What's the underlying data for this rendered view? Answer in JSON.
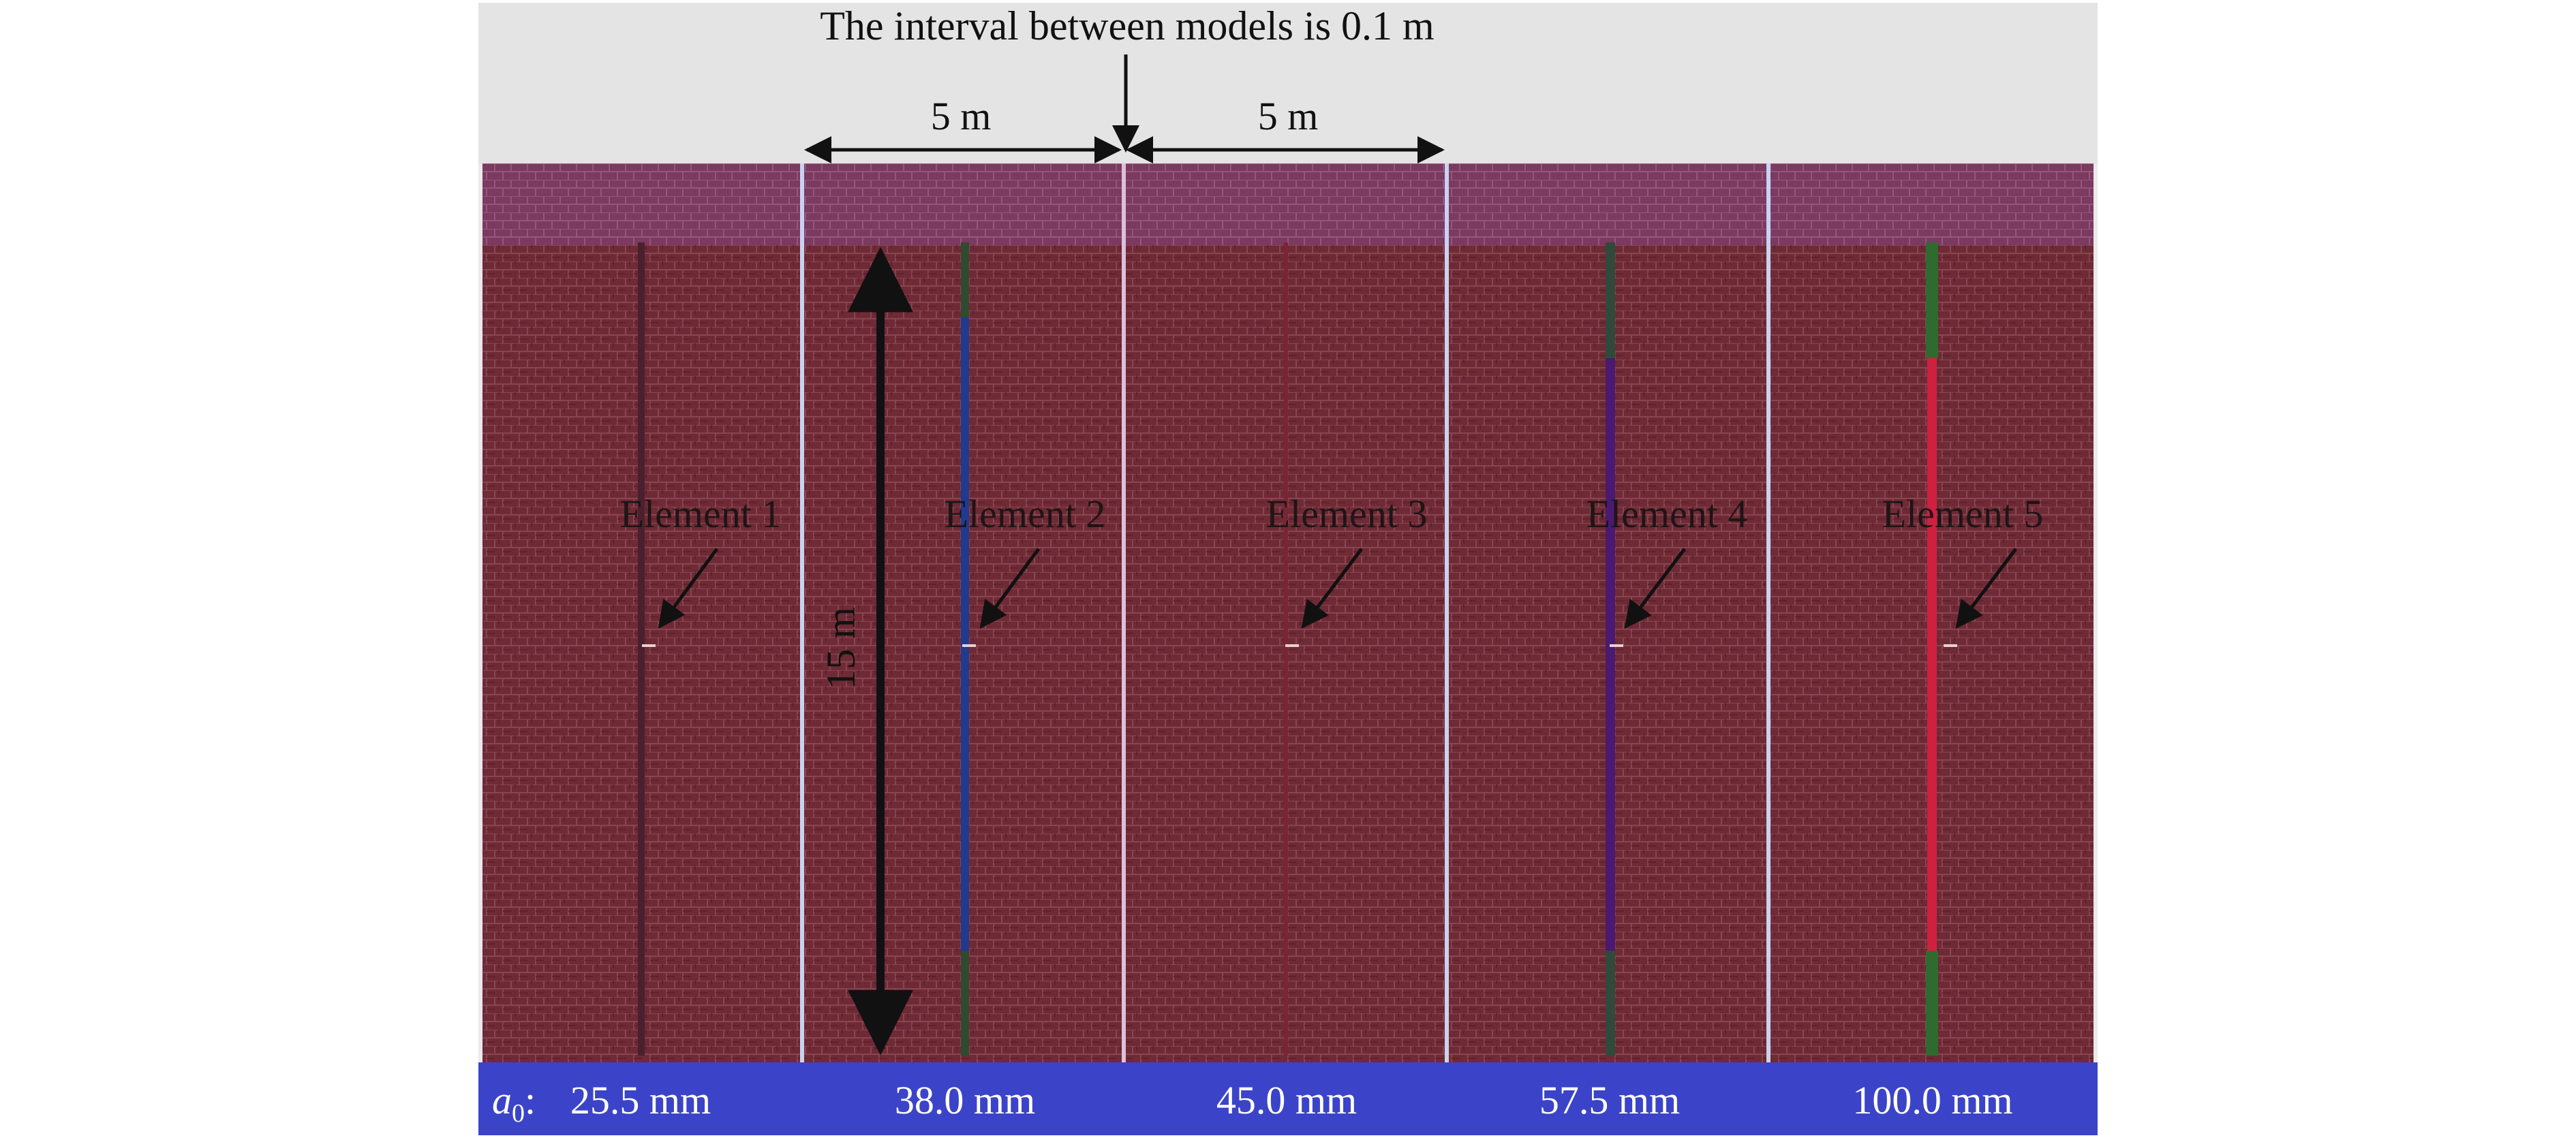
{
  "annotations": {
    "interval_note": "The interval between models is 0.1 m",
    "width_label_left": "5 m",
    "width_label_right": "5 m",
    "height_label": "15 m"
  },
  "elements": [
    {
      "label": "Element 1",
      "a0": "25.5 mm"
    },
    {
      "label": "Element 2",
      "a0": "38.0 mm"
    },
    {
      "label": "Element 3",
      "a0": "45.0 mm"
    },
    {
      "label": "Element 4",
      "a0": "57.5 mm"
    },
    {
      "label": "Element 5",
      "a0": "100.0 mm"
    }
  ],
  "bottom_bar": {
    "symbol": "a",
    "subscript": "0",
    "colon": ":"
  },
  "colors": {
    "soil_fill": "#6e2a35",
    "top_layer": "#7b3a5f",
    "bottom_band": "#3b44c8",
    "header_bg": "#e4e4e4",
    "divider": "#c7d3f0",
    "pile_strip_1": "#4a2030",
    "pile_strip_2": "#1f3a8f",
    "pile_strip_3": "#7a2535",
    "pile_strip_4": "#4a1a70",
    "pile_strip_5": "#d02040",
    "pile_end_green": "#2f6b2f"
  }
}
